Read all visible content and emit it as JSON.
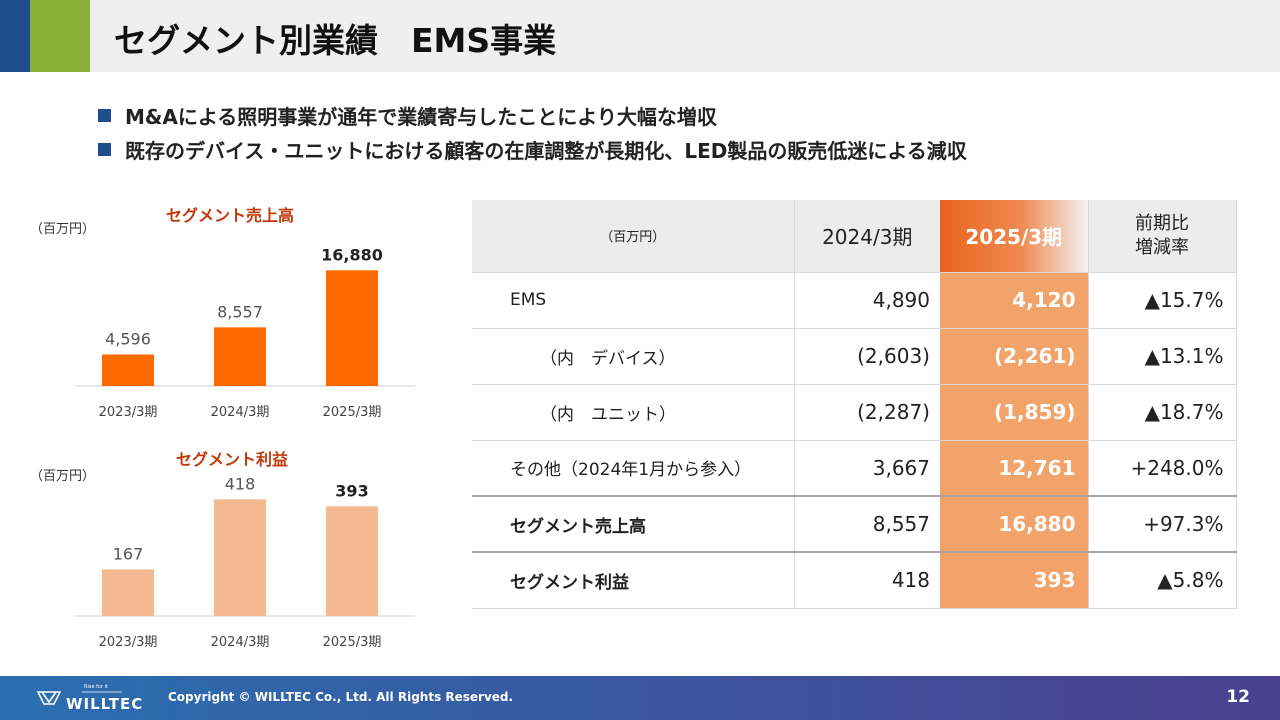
{
  "header": {
    "title": "セグメント別業績　EMS事業",
    "colors": {
      "blue": "#1f4e8c",
      "green": "#8bb03a"
    }
  },
  "bullets": [
    "M&Aによる照明事業が通年で業績寄与したことにより大幅な増収",
    "既存のデバイス・ユニットにおける顧客の在庫調整が長期化、LED製品の販売低迷による減収"
  ],
  "charts": {
    "sales_unit": "（百万円）",
    "profit_unit": "（百万円）"
  },
  "chart_data": [
    {
      "type": "bar",
      "title": "セグメント売上高",
      "categories": [
        "2023/3期",
        "2024/3期",
        "2025/3期"
      ],
      "values": [
        4596,
        8557,
        16880
      ],
      "labels": [
        "4,596",
        "8,557",
        "16,880"
      ],
      "ylim": [
        0,
        17500
      ],
      "color": "#ff6a00",
      "highlight_last_label": true
    },
    {
      "type": "bar",
      "title": "セグメント利益",
      "categories": [
        "2023/3期",
        "2024/3期",
        "2025/3期"
      ],
      "values": [
        167,
        418,
        393
      ],
      "labels": [
        "167",
        "418",
        "393"
      ],
      "ylim": [
        0,
        430
      ],
      "color": "#f4b990",
      "highlight_last_label": true
    }
  ],
  "table": {
    "header": {
      "unit": "（百万円）",
      "col1": "2024/3期",
      "col2": "2025/3期",
      "col3_line1": "前期比",
      "col3_line2": "増減率"
    },
    "rows": [
      {
        "label": "EMS",
        "prev": "4,890",
        "curr": "4,120",
        "rate": "▲15.7%"
      },
      {
        "label": "（内　デバイス）",
        "prev": "(2,603)",
        "curr": "(2,261)",
        "rate": "▲13.1%"
      },
      {
        "label": "（内　ユニット）",
        "prev": "(2,287)",
        "curr": "(1,859)",
        "rate": "▲18.7%"
      },
      {
        "label": "その他（2024年1月から参入）",
        "prev": "3,667",
        "curr": "12,761",
        "rate": "+248.0%"
      },
      {
        "label": "セグメント売上高",
        "prev": "8,557",
        "curr": "16,880",
        "rate": "+97.3%"
      },
      {
        "label": "セグメント利益",
        "prev": "418",
        "curr": "393",
        "rate": "▲5.8%"
      }
    ],
    "highlight_color": "#f2a36a"
  },
  "footer": {
    "logo_tagline": "Rise for it",
    "logo_text": "WILLTEC",
    "copyright": "Copyright © WILLTEC Co., Ltd. All Rights Reserved.",
    "page_number": "12"
  }
}
